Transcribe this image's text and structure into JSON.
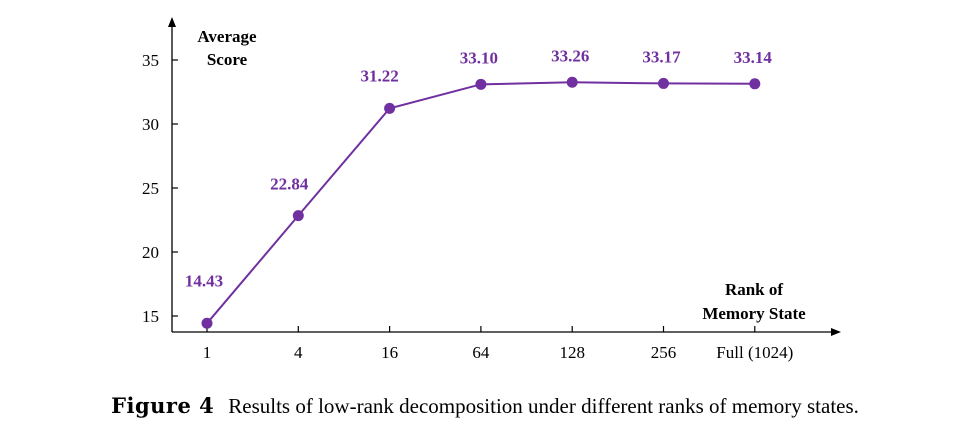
{
  "chart_data": {
    "type": "line",
    "categories": [
      "1",
      "4",
      "16",
      "64",
      "128",
      "256",
      "Full (1024)"
    ],
    "values": [
      14.43,
      22.84,
      31.22,
      33.1,
      33.26,
      33.17,
      33.14
    ],
    "data_labels": [
      "14.43",
      "22.84",
      "31.22",
      "33.10",
      "33.26",
      "33.17",
      "33.14"
    ],
    "ylabel_lines": [
      "Average",
      "Score"
    ],
    "xlabel_lines": [
      "Rank of",
      "Memory State"
    ],
    "yticks": [
      15,
      20,
      25,
      30,
      35
    ],
    "ylim": [
      13.5,
      38
    ],
    "grid": false,
    "legend": "none",
    "color": "#7030a0"
  },
  "caption": {
    "label": "Figure 4",
    "text": "Results of low-rank decomposition under different ranks of memory states."
  }
}
